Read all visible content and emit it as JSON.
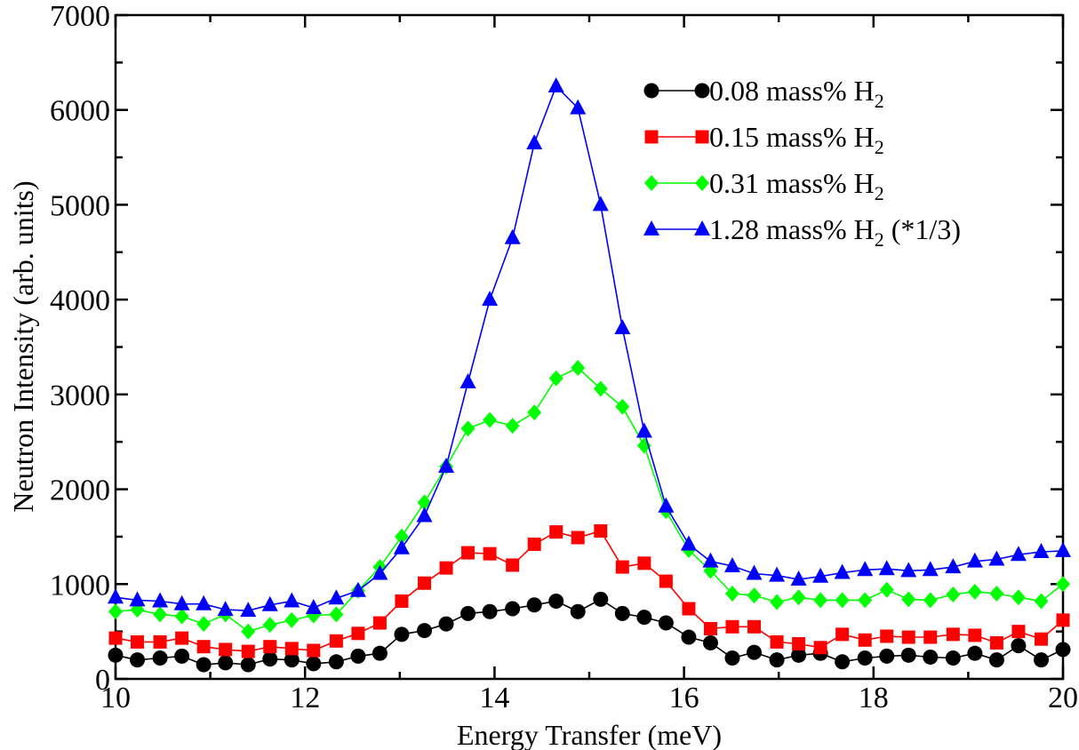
{
  "chart_data": {
    "type": "line",
    "xlabel": "Energy Transfer (meV)",
    "ylabel": "Neutron Intensity (arb. units)",
    "xlim": [
      10,
      20
    ],
    "ylim": [
      0,
      7000
    ],
    "x_ticks": [
      10,
      12,
      14,
      16,
      18,
      20
    ],
    "y_ticks": [
      0,
      1000,
      2000,
      3000,
      4000,
      5000,
      6000,
      7000
    ],
    "x_tick_labels": [
      "10",
      "12",
      "14",
      "16",
      "18",
      "20"
    ],
    "y_tick_labels": [
      "0",
      "1000",
      "2000",
      "3000",
      "4000",
      "5000",
      "6000",
      "7000"
    ],
    "grid": false,
    "legend_position": "top-right",
    "x": [
      10.0,
      10.23,
      10.47,
      10.7,
      10.93,
      11.16,
      11.4,
      11.63,
      11.86,
      12.09,
      12.33,
      12.56,
      12.79,
      13.02,
      13.26,
      13.49,
      13.72,
      13.95,
      14.19,
      14.42,
      14.65,
      14.88,
      15.12,
      15.35,
      15.58,
      15.81,
      16.05,
      16.28,
      16.51,
      16.74,
      16.98,
      17.21,
      17.44,
      17.67,
      17.91,
      18.14,
      18.37,
      18.6,
      18.84,
      19.07,
      19.3,
      19.53,
      19.77,
      20.0
    ],
    "series": [
      {
        "name": "0.08 mass% H",
        "subscript": "2",
        "suffix": "",
        "color": "#000000",
        "marker": "circle",
        "values": [
          250,
          200,
          220,
          240,
          150,
          170,
          150,
          210,
          200,
          160,
          180,
          240,
          270,
          470,
          510,
          580,
          690,
          710,
          740,
          780,
          820,
          710,
          840,
          690,
          650,
          590,
          440,
          380,
          220,
          280,
          200,
          250,
          270,
          180,
          220,
          240,
          250,
          230,
          220,
          270,
          200,
          350,
          200,
          310
        ]
      },
      {
        "name": "0.15 mass% H",
        "subscript": "2",
        "suffix": "",
        "color": "#ff0000",
        "marker": "square",
        "values": [
          430,
          390,
          390,
          430,
          340,
          310,
          290,
          340,
          320,
          300,
          400,
          480,
          590,
          820,
          1010,
          1170,
          1330,
          1320,
          1200,
          1420,
          1550,
          1490,
          1560,
          1180,
          1220,
          1030,
          740,
          530,
          550,
          550,
          390,
          370,
          330,
          470,
          410,
          450,
          440,
          440,
          470,
          460,
          380,
          500,
          420,
          620
        ]
      },
      {
        "name": "0.31 mass% H",
        "subscript": "2",
        "suffix": "",
        "color": "#00ff00",
        "marker": "diamond",
        "values": [
          710,
          730,
          680,
          660,
          580,
          680,
          500,
          570,
          620,
          670,
          680,
          930,
          1180,
          1500,
          1860,
          2240,
          2640,
          2730,
          2670,
          2810,
          3170,
          3280,
          3060,
          2870,
          2460,
          1770,
          1360,
          1140,
          900,
          880,
          810,
          860,
          830,
          830,
          830,
          940,
          840,
          830,
          890,
          920,
          900,
          860,
          820,
          1000
        ]
      },
      {
        "name": "1.28 mass% H",
        "subscript": "2",
        "suffix": " (*1/3)",
        "color": "#0000ff",
        "marker": "triangle",
        "values": [
          860,
          830,
          820,
          790,
          790,
          730,
          720,
          780,
          820,
          750,
          850,
          930,
          1110,
          1380,
          1720,
          2240,
          3130,
          4000,
          4650,
          5650,
          6250,
          6020,
          5000,
          3700,
          2610,
          1820,
          1420,
          1240,
          1190,
          1110,
          1090,
          1050,
          1080,
          1120,
          1150,
          1160,
          1140,
          1150,
          1180,
          1240,
          1260,
          1310,
          1340,
          1350
        ]
      }
    ]
  }
}
